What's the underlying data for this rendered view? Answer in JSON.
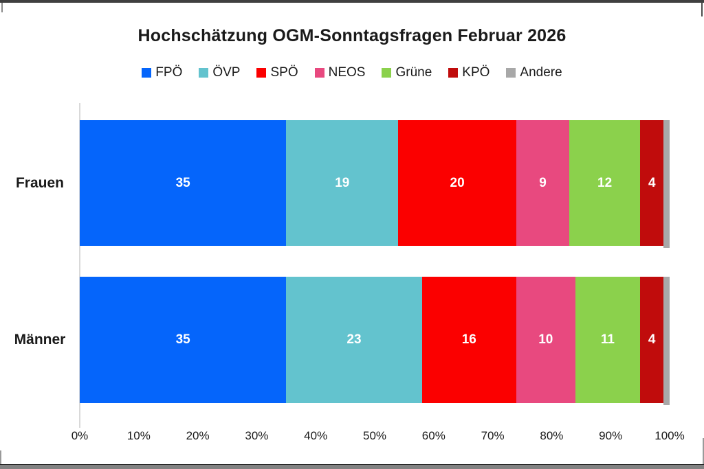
{
  "chart_data": {
    "type": "bar",
    "orientation": "horizontal-stacked",
    "title": "Hochschätzung OGM-Sonntagsfragen Februar 2026",
    "categories": [
      "Frauen",
      "Männer"
    ],
    "series": [
      {
        "name": "FPÖ",
        "color": "#0565FB",
        "values": [
          35,
          35
        ]
      },
      {
        "name": "ÖVP",
        "color": "#63C3CE",
        "values": [
          19,
          23
        ]
      },
      {
        "name": "SPÖ",
        "color": "#FB0000",
        "values": [
          20,
          16
        ]
      },
      {
        "name": "NEOS",
        "color": "#E8497F",
        "values": [
          9,
          10
        ]
      },
      {
        "name": "Grüne",
        "color": "#8BD14C",
        "values": [
          12,
          11
        ]
      },
      {
        "name": "KPÖ",
        "color": "#C00C0C",
        "values": [
          4,
          4
        ]
      },
      {
        "name": "Andere",
        "color": "#A8A8A8",
        "values": [
          1,
          1
        ]
      }
    ],
    "x_ticks": [
      "0%",
      "10%",
      "20%",
      "30%",
      "40%",
      "50%",
      "60%",
      "70%",
      "80%",
      "90%",
      "100%"
    ],
    "xlim": [
      0,
      100
    ],
    "legend_position": "top",
    "grid": false,
    "data_label_min_value": 2,
    "colors": {
      "background": "#FFFFFF",
      "axis_line": "#D9D9D9",
      "text": "#1A1A1A"
    }
  }
}
